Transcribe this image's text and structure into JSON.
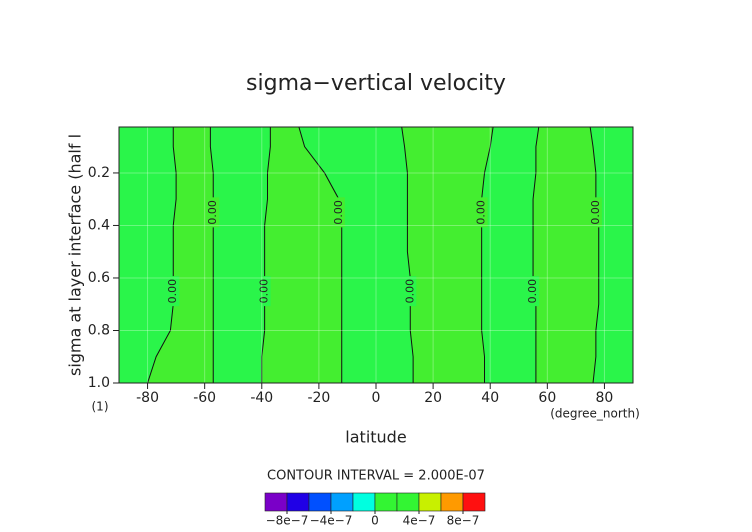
{
  "chart_data": {
    "type": "contour",
    "title": "sigma−vertical velocity",
    "x_label": "latitude",
    "x_unit": "(degree_north)",
    "y_label": "sigma at layer interface (half l",
    "y_unit": "(1)",
    "xlim": [
      -90,
      90
    ],
    "ylim": [
      1,
      0.025
    ],
    "xticks": [
      -80,
      -60,
      -40,
      -20,
      0,
      20,
      40,
      60,
      80
    ],
    "yticks": [
      0.2,
      0.4,
      0.6,
      0.8,
      {
        "value": 1,
        "label": "1.0"
      }
    ],
    "grid": true,
    "background_color": "#2af54a",
    "band_color": "#44ee30",
    "contour_label": "0.00",
    "bands": [
      {
        "sigma": [
          0.025,
          0.1,
          0.2,
          0.3,
          0.4,
          0.5,
          0.6,
          0.7,
          0.8,
          0.9,
          1
        ],
        "west_lat": [
          -71,
          -71,
          -70,
          -70,
          -71,
          -71,
          -71,
          -71,
          -72,
          -77,
          -80
        ],
        "east_lat": [
          -58,
          -58,
          -57,
          -57,
          -57,
          -57,
          -57,
          -57,
          -57,
          -57,
          -57
        ]
      },
      {
        "sigma": [
          0.025,
          0.1,
          0.2,
          0.3,
          0.4,
          0.5,
          0.6,
          0.7,
          0.8,
          0.9,
          1
        ],
        "west_lat": [
          -37,
          -37,
          -38,
          -38,
          -39,
          -39,
          -39,
          -39,
          -39,
          -40,
          -40
        ],
        "east_lat": [
          -27,
          -25,
          -18,
          -13,
          -12,
          -12,
          -12,
          -12,
          -12,
          -12,
          -12
        ]
      },
      {
        "sigma": [
          0.025,
          0.1,
          0.2,
          0.3,
          0.4,
          0.5,
          0.6,
          0.7,
          0.8,
          0.9,
          1
        ],
        "west_lat": [
          9,
          10,
          11,
          11,
          11,
          11,
          12,
          12,
          12,
          13,
          13
        ],
        "east_lat": [
          41,
          40,
          38,
          37,
          37,
          37,
          37,
          37,
          37,
          38,
          38
        ]
      },
      {
        "sigma": [
          0.025,
          0.1,
          0.2,
          0.3,
          0.4,
          0.5,
          0.6,
          0.7,
          0.8,
          0.9,
          1
        ],
        "west_lat": [
          57,
          56,
          56,
          55,
          55,
          55,
          55,
          56,
          56,
          56,
          56
        ],
        "east_lat": [
          75,
          76,
          77,
          77,
          78,
          78,
          78,
          78,
          77,
          77,
          76
        ]
      }
    ],
    "contour_interval": "CONTOUR INTERVAL = 2.000E-07",
    "colorbar": {
      "bounds": [
        -1e-06,
        -8e-07,
        -6e-07,
        -4e-07,
        -2e-07,
        0,
        2e-07,
        4e-07,
        6e-07,
        8e-07,
        1e-06
      ],
      "colors": [
        "#7a00c8",
        "#2000e6",
        "#0050ff",
        "#00a0ff",
        "#00ffe0",
        "#33f533",
        "#33f533",
        "#c8f000",
        "#ff9a00",
        "#ff1010"
      ],
      "ticks": [
        {
          "value": -8e-07,
          "label": "−8e−7"
        },
        {
          "value": -4e-07,
          "label": "−4e−7"
        },
        0,
        {
          "value": 4e-07,
          "label": "4e−7"
        },
        {
          "value": 8e-07,
          "label": "8e−7"
        }
      ]
    }
  }
}
